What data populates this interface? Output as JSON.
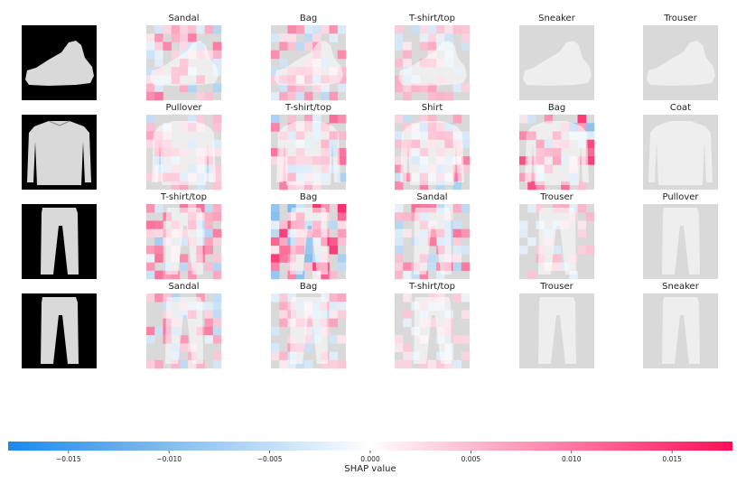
{
  "chart_data": {
    "type": "heatmap",
    "description_free": true,
    "rows": [
      {
        "item": "sneaker",
        "explanations": [
          {
            "label": "Sandal",
            "intensity": 0.55
          },
          {
            "label": "Bag",
            "intensity": 0.45
          },
          {
            "label": "T-shirt/top",
            "intensity": 0.35
          },
          {
            "label": "Sneaker",
            "intensity": 0.05
          },
          {
            "label": "Trouser",
            "intensity": 0.0
          }
        ]
      },
      {
        "item": "pullover",
        "explanations": [
          {
            "label": "Pullover",
            "intensity": 0.45
          },
          {
            "label": "T-shirt/top",
            "intensity": 0.6
          },
          {
            "label": "Shirt",
            "intensity": 0.55
          },
          {
            "label": "Bag",
            "intensity": 0.75
          },
          {
            "label": "Coat",
            "intensity": 0.0
          }
        ]
      },
      {
        "item": "trouser",
        "explanations": [
          {
            "label": "T-shirt/top",
            "intensity": 0.6
          },
          {
            "label": "Bag",
            "intensity": 0.85
          },
          {
            "label": "Sandal",
            "intensity": 0.55
          },
          {
            "label": "Trouser",
            "intensity": 0.3
          },
          {
            "label": "Pullover",
            "intensity": 0.0
          }
        ]
      },
      {
        "item": "trouser",
        "explanations": [
          {
            "label": "Sandal",
            "intensity": 0.5
          },
          {
            "label": "Bag",
            "intensity": 0.35
          },
          {
            "label": "T-shirt/top",
            "intensity": 0.2
          },
          {
            "label": "Trouser",
            "intensity": 0.05
          },
          {
            "label": "Sneaker",
            "intensity": 0.0
          }
        ]
      }
    ],
    "colorbar": {
      "label": "SHAP value",
      "range": [
        -0.018,
        0.018
      ],
      "ticks": [
        -0.015,
        -0.01,
        -0.005,
        0.0,
        0.005,
        0.01,
        0.015
      ],
      "tick_labels": [
        "−0.015",
        "−0.010",
        "−0.005",
        "0.000",
        "0.005",
        "0.010",
        "0.015"
      ],
      "colors": {
        "negative": "#1e88e5",
        "neutral": "#ffffff",
        "positive": "#ff0d57"
      }
    }
  }
}
